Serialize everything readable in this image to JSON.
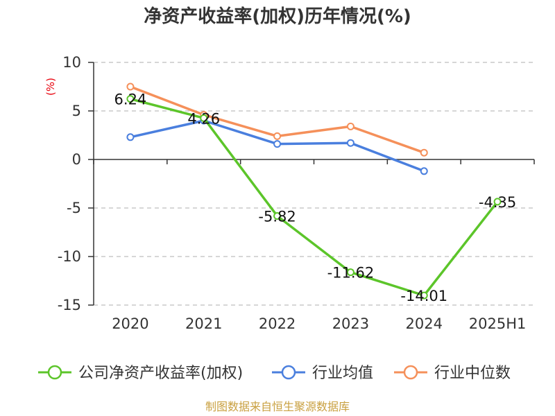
{
  "title": "净资产收益率(加权)历年情况(%)",
  "footer": "制图数据来自恒生聚源数据库",
  "chart_data": {
    "type": "line",
    "title": "净资产收益率(加权)历年情况(%)",
    "ylabel": "(%)",
    "xlabel": "",
    "categories": [
      "2020",
      "2021",
      "2022",
      "2023",
      "2024",
      "2025H1"
    ],
    "ylim": [
      -15,
      10
    ],
    "yticks": [
      10,
      5,
      0,
      -5,
      -10,
      -15
    ],
    "grid": true,
    "legend_position": "bottom",
    "series": [
      {
        "name": "公司净资产收益率(加权)",
        "color": "#5cc52a",
        "values": [
          6.24,
          4.26,
          -5.82,
          -11.62,
          -14.01,
          -4.35
        ],
        "labels": [
          "6.24",
          "4.26",
          "-5.82",
          "-11.62",
          "-14.01",
          "-4.35"
        ]
      },
      {
        "name": "行业均值",
        "color": "#4a7fde",
        "values": [
          2.3,
          4.0,
          1.6,
          1.7,
          -1.2,
          null
        ]
      },
      {
        "name": "行业中位数",
        "color": "#f5905a",
        "values": [
          7.5,
          4.6,
          2.4,
          3.4,
          0.7,
          null
        ]
      }
    ]
  }
}
